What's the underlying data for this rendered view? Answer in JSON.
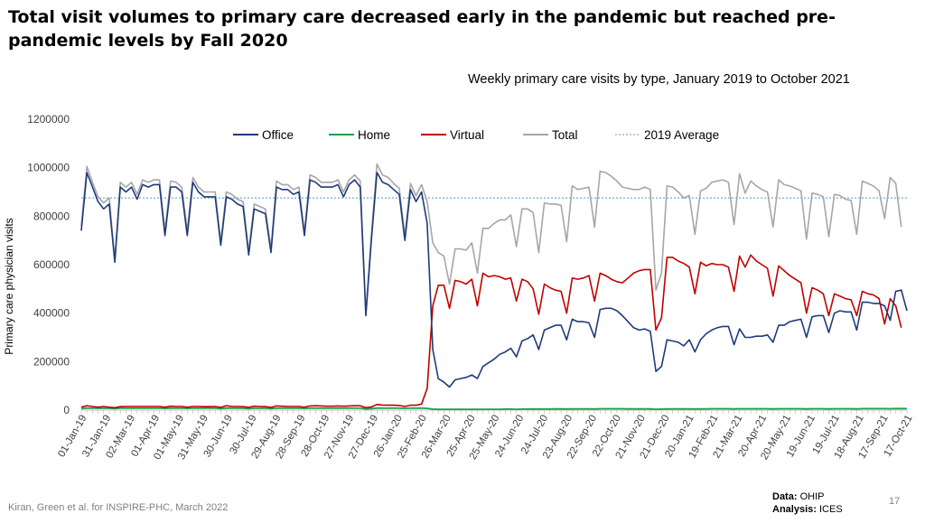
{
  "title": "Total visit volumes to primary care decreased early in the pandemic but reached pre-pandemic levels by Fall 2020",
  "subtitle": "Weekly primary care visits by type, January 2019 to October 2021",
  "footer": {
    "credit": "Kiran, Green et al. for INSPIRE-PHC, March 2022",
    "data_label": "Data:",
    "data_value": "OHIP",
    "analysis_label": "Analysis:",
    "analysis_value": "ICES",
    "page_number": "17"
  },
  "colors": {
    "office": "#1f3b7a",
    "home": "#1aa34a",
    "virtual": "#c00000",
    "total": "#a6a6a6",
    "avg": "#7fb2d6"
  },
  "chart_data": {
    "type": "line",
    "ylabel": "Primary care physician visits",
    "xlabel": "",
    "ylim": [
      0,
      1200000
    ],
    "yticks": [
      "0",
      "200000",
      "400000",
      "600000",
      "800000",
      "1000000",
      "1200000"
    ],
    "x_tick_labels": [
      "01-Jan-19",
      "31-Jan-19",
      "02-Mar-19",
      "01-Apr-19",
      "01-May-19",
      "31-May-19",
      "30-Jun-19",
      "30-Jul-19",
      "29-Aug-19",
      "28-Sep-19",
      "28-Oct-19",
      "27-Nov-19",
      "27-Dec-19",
      "26-Jan-20",
      "25-Feb-20",
      "26-Mar-20",
      "25-Apr-20",
      "25-May-20",
      "24-Jun-20",
      "24-Jul-20",
      "23-Aug-20",
      "22-Sep-20",
      "22-Oct-20",
      "21-Nov-20",
      "21-Dec-20",
      "20-Jan-21",
      "19-Feb-21",
      "21-Mar-21",
      "20-Apr-21",
      "20-May-21",
      "19-Jun-21",
      "19-Jul-21",
      "18-Aug-21",
      "17-Sep-21",
      "17-Oct-21"
    ],
    "week_start": "2019-01-01",
    "legend_position": "top",
    "grid": false,
    "series": [
      {
        "name": "Office",
        "key": "office",
        "values": [
          740000,
          980000,
          920000,
          860000,
          830000,
          850000,
          610000,
          920000,
          900000,
          920000,
          870000,
          930000,
          920000,
          930000,
          930000,
          720000,
          920000,
          920000,
          900000,
          720000,
          940000,
          900000,
          880000,
          880000,
          880000,
          680000,
          880000,
          870000,
          850000,
          840000,
          640000,
          830000,
          820000,
          810000,
          650000,
          920000,
          910000,
          910000,
          890000,
          900000,
          720000,
          950000,
          940000,
          920000,
          920000,
          920000,
          930000,
          880000,
          930000,
          950000,
          920000,
          390000,
          700000,
          980000,
          940000,
          930000,
          910000,
          890000,
          700000,
          910000,
          860000,
          900000,
          770000,
          250000,
          130000,
          115000,
          95000,
          125000,
          130000,
          135000,
          145000,
          130000,
          180000,
          195000,
          210000,
          230000,
          240000,
          255000,
          220000,
          285000,
          295000,
          310000,
          250000,
          330000,
          340000,
          350000,
          350000,
          290000,
          375000,
          365000,
          365000,
          360000,
          300000,
          415000,
          420000,
          420000,
          410000,
          390000,
          365000,
          340000,
          330000,
          335000,
          325000,
          160000,
          180000,
          290000,
          285000,
          280000,
          265000,
          290000,
          240000,
          290000,
          315000,
          330000,
          340000,
          345000,
          345000,
          270000,
          335000,
          300000,
          300000,
          305000,
          305000,
          310000,
          280000,
          350000,
          350000,
          365000,
          370000,
          375000,
          300000,
          385000,
          390000,
          390000,
          320000,
          400000,
          410000,
          405000,
          405000,
          330000,
          445000,
          445000,
          440000,
          440000,
          430000,
          370000,
          490000,
          495000,
          410000
        ]
      },
      {
        "name": "Home",
        "key": "home",
        "values": [
          6000,
          8000,
          8000,
          7500,
          7500,
          7500,
          6000,
          8000,
          8000,
          8000,
          8000,
          8000,
          8000,
          8000,
          8000,
          7000,
          8000,
          8000,
          8000,
          7000,
          8000,
          8000,
          8000,
          8000,
          8000,
          6500,
          8000,
          8000,
          8000,
          7500,
          6500,
          7500,
          7500,
          7500,
          6500,
          8000,
          8000,
          8000,
          8000,
          8000,
          7000,
          8000,
          8000,
          8000,
          8000,
          8000,
          8000,
          8000,
          8000,
          8000,
          8000,
          5000,
          6500,
          8000,
          8000,
          8000,
          8000,
          8000,
          7000,
          8000,
          8000,
          8000,
          7000,
          4000,
          3000,
          3000,
          3000,
          3000,
          3000,
          3000,
          3000,
          3000,
          3500,
          3500,
          3500,
          3500,
          4000,
          4000,
          3500,
          4000,
          4000,
          4500,
          4000,
          4500,
          4500,
          5000,
          5000,
          4500,
          5000,
          5000,
          5000,
          5000,
          4500,
          5500,
          5500,
          5500,
          5500,
          5500,
          5000,
          5000,
          5000,
          5000,
          5000,
          3500,
          4000,
          5000,
          5000,
          5000,
          5000,
          5000,
          4500,
          5000,
          5000,
          5500,
          5500,
          5500,
          5500,
          5000,
          5500,
          5500,
          5500,
          5500,
          5500,
          5500,
          5000,
          5500,
          5500,
          5500,
          5500,
          5500,
          5000,
          5500,
          5500,
          5500,
          5000,
          5500,
          5500,
          5500,
          5500,
          5000,
          6000,
          6000,
          6000,
          6000,
          6000,
          5500,
          6500,
          6500,
          6000
        ]
      },
      {
        "name": "Virtual",
        "key": "virtual",
        "values": [
          12000,
          18000,
          15000,
          12000,
          15000,
          12000,
          10000,
          14000,
          15000,
          15000,
          15000,
          15000,
          15000,
          15000,
          15000,
          12000,
          16000,
          15000,
          15000,
          12000,
          15000,
          15000,
          14000,
          14000,
          15000,
          11000,
          18000,
          15000,
          15000,
          14000,
          11000,
          16000,
          15000,
          14000,
          11000,
          17000,
          16000,
          15000,
          15000,
          15000,
          12000,
          17000,
          18000,
          17000,
          16000,
          16000,
          17000,
          16000,
          17000,
          18000,
          18000,
          10000,
          13000,
          23000,
          21000,
          20000,
          20000,
          19000,
          15000,
          20000,
          20000,
          25000,
          90000,
          430000,
          515000,
          515000,
          420000,
          535000,
          530000,
          520000,
          540000,
          430000,
          565000,
          550000,
          555000,
          550000,
          540000,
          545000,
          450000,
          540000,
          530000,
          500000,
          395000,
          520000,
          505000,
          495000,
          490000,
          400000,
          545000,
          540000,
          545000,
          555000,
          450000,
          565000,
          555000,
          540000,
          530000,
          525000,
          545000,
          565000,
          575000,
          580000,
          580000,
          330000,
          380000,
          630000,
          630000,
          615000,
          605000,
          590000,
          480000,
          610000,
          595000,
          605000,
          600000,
          600000,
          590000,
          490000,
          635000,
          590000,
          640000,
          615000,
          600000,
          585000,
          470000,
          595000,
          575000,
          555000,
          540000,
          525000,
          400000,
          505000,
          495000,
          480000,
          390000,
          480000,
          470000,
          460000,
          455000,
          390000,
          490000,
          480000,
          475000,
          460000,
          355000,
          460000,
          430000,
          340000
        ]
      },
      {
        "name": "Total",
        "key": "total",
        "values": [
          760000,
          1005000,
          940000,
          880000,
          855000,
          875000,
          625000,
          940000,
          920000,
          940000,
          890000,
          950000,
          940000,
          950000,
          950000,
          740000,
          945000,
          940000,
          920000,
          740000,
          960000,
          920000,
          900000,
          900000,
          900000,
          695000,
          900000,
          890000,
          870000,
          860000,
          655000,
          850000,
          840000,
          830000,
          665000,
          945000,
          930000,
          930000,
          910000,
          920000,
          735000,
          970000,
          960000,
          940000,
          940000,
          940000,
          950000,
          900000,
          950000,
          970000,
          945000,
          400000,
          720000,
          1015000,
          970000,
          960000,
          935000,
          915000,
          720000,
          935000,
          885000,
          930000,
          860000,
          690000,
          650000,
          635000,
          520000,
          665000,
          665000,
          660000,
          690000,
          565000,
          750000,
          750000,
          770000,
          785000,
          785000,
          805000,
          675000,
          830000,
          830000,
          815000,
          650000,
          855000,
          850000,
          850000,
          845000,
          695000,
          925000,
          910000,
          915000,
          920000,
          755000,
          985000,
          980000,
          965000,
          945000,
          920000,
          915000,
          910000,
          910000,
          920000,
          910000,
          495000,
          565000,
          925000,
          920000,
          900000,
          875000,
          885000,
          725000,
          905000,
          915000,
          940000,
          945000,
          950000,
          940000,
          765000,
          975000,
          895000,
          945000,
          925000,
          910000,
          900000,
          755000,
          950000,
          930000,
          925000,
          915000,
          905000,
          705000,
          895000,
          890000,
          880000,
          715000,
          890000,
          885000,
          870000,
          865000,
          725000,
          945000,
          935000,
          925000,
          905000,
          790000,
          960000,
          935000,
          755000
        ]
      },
      {
        "name": "2019 Average",
        "key": "avg",
        "constant": 875000
      }
    ]
  }
}
